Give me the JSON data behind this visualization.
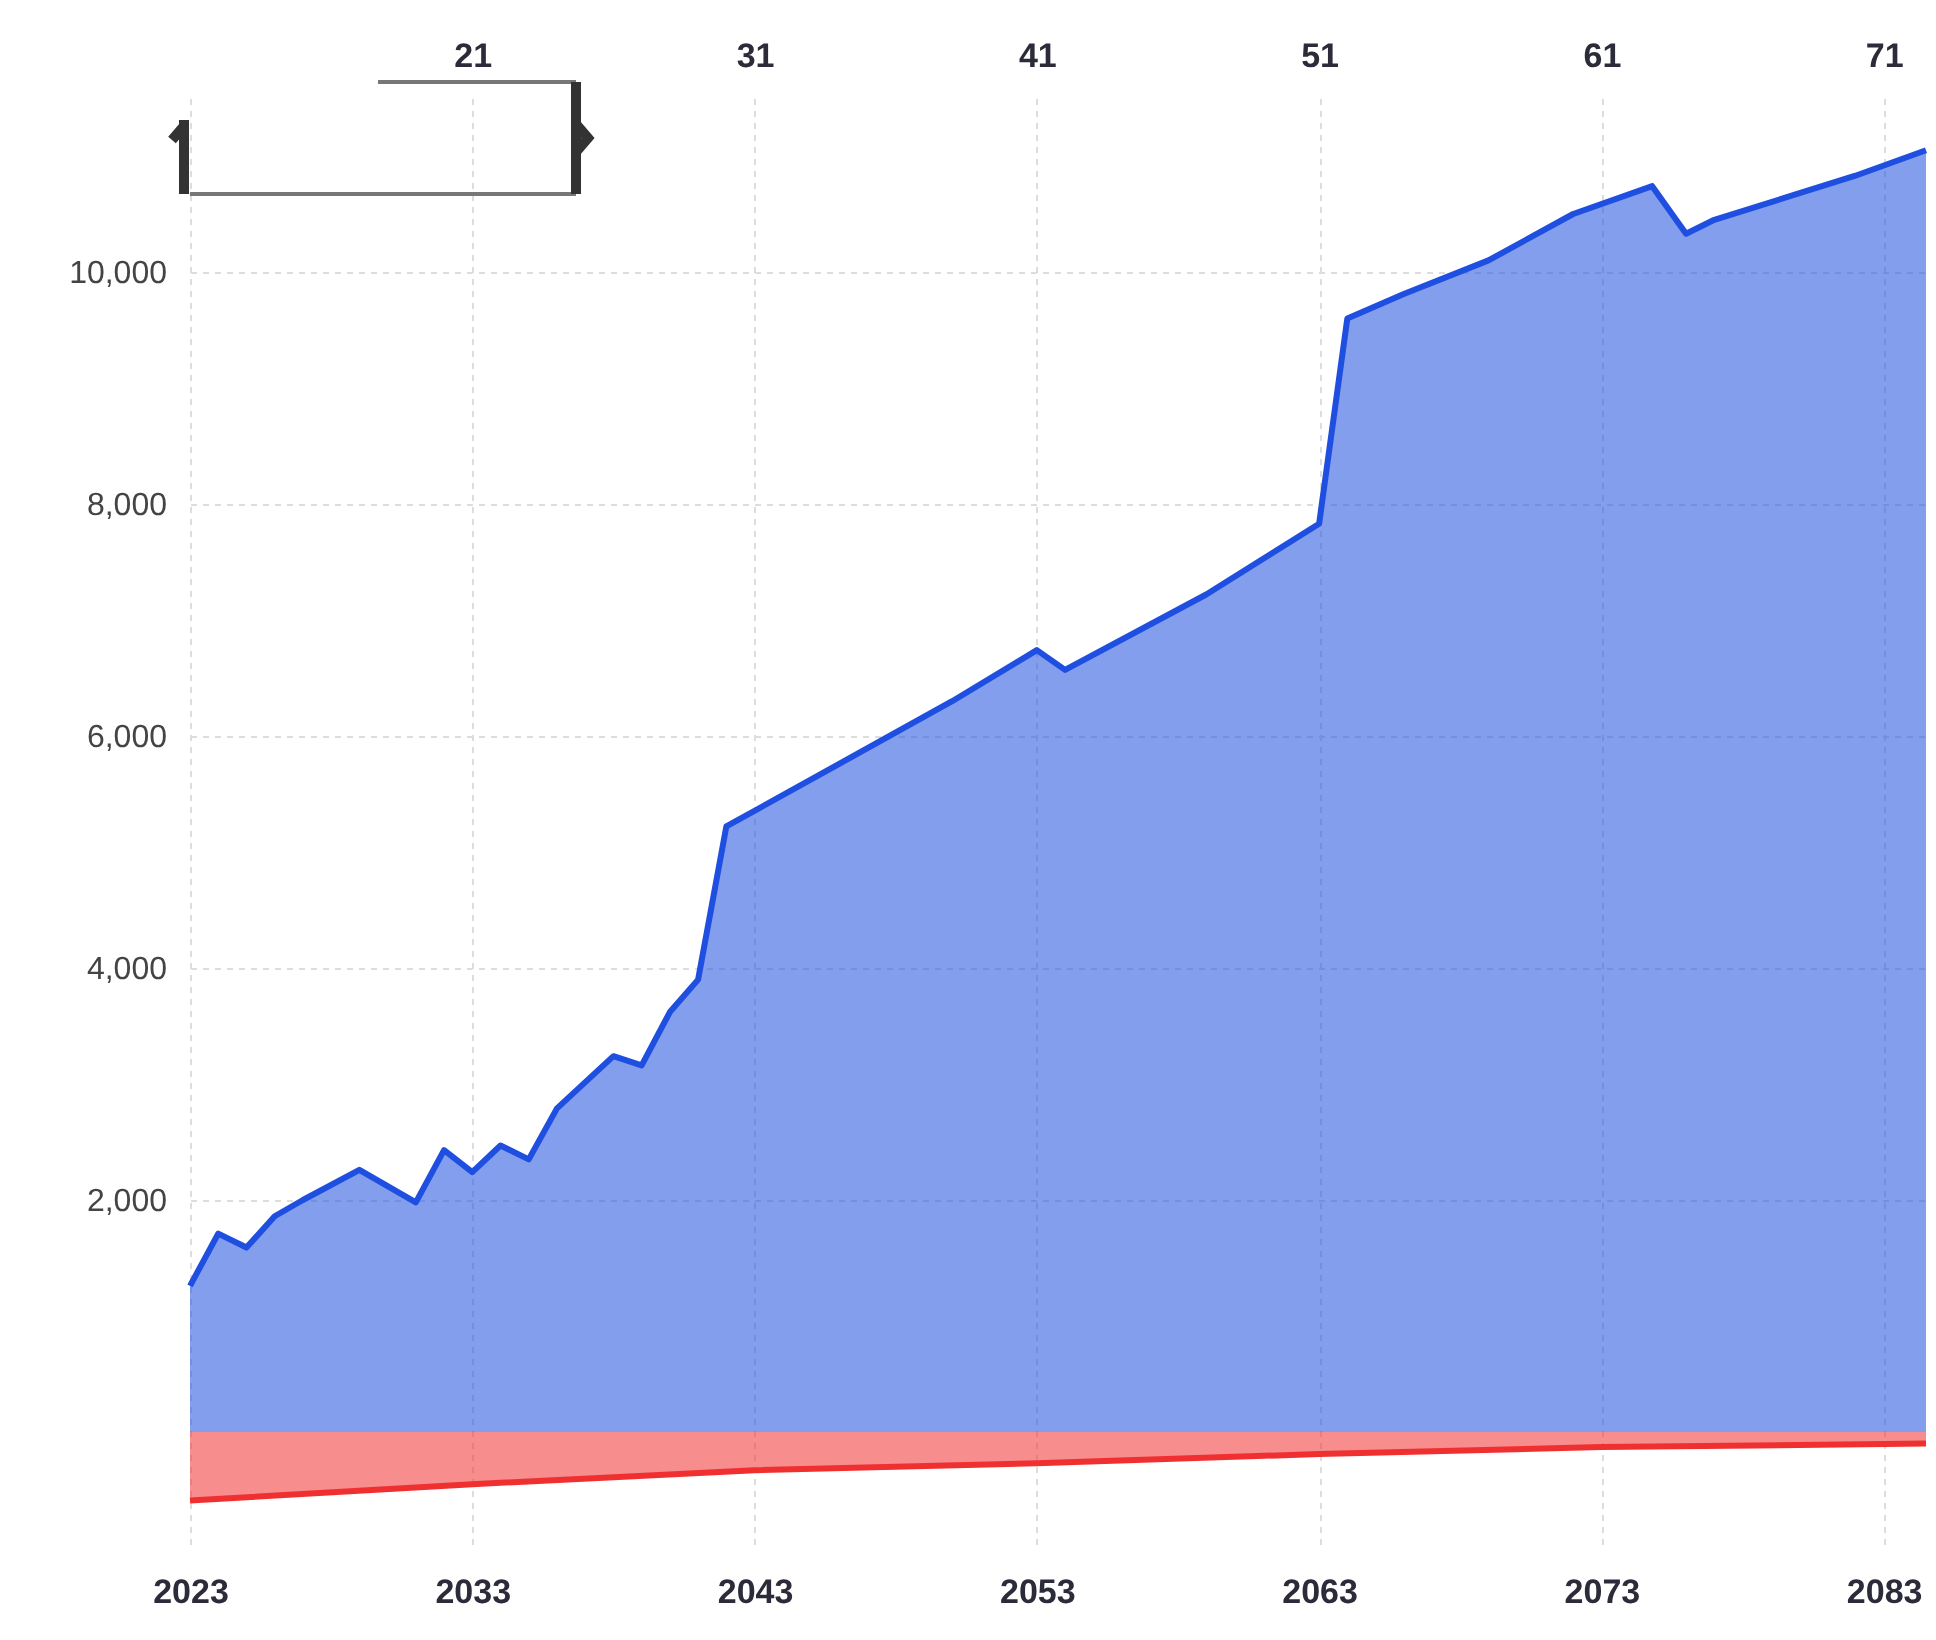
{
  "chart_data": {
    "type": "area",
    "x": [
      2023,
      2024,
      2025,
      2026,
      2027,
      2029,
      2031,
      2032,
      2033,
      2034,
      2035,
      2036,
      2038,
      2039,
      2040,
      2041,
      2042,
      2050,
      2053,
      2054,
      2059,
      2063,
      2064,
      2066,
      2069,
      2072,
      2074.8,
      2076,
      2077,
      2082,
      2084.5
    ],
    "series": [
      {
        "color": "#1f4fe0",
        "values": [
          1260,
          1710,
          1590,
          1860,
          2000,
          2260,
          1980,
          2430,
          2240,
          2470,
          2350,
          2790,
          3240,
          3160,
          3620,
          3900,
          5220,
          6300,
          6740,
          6570,
          7220,
          7830,
          9600,
          9810,
          10100,
          10500,
          10740,
          10330,
          10450,
          10830,
          11050
        ]
      },
      {
        "color": "#f03030",
        "x": [
          2023,
          2033,
          2043,
          2053,
          2063,
          2073,
          2084.5
        ],
        "values": [
          -590,
          -450,
          -330,
          -270,
          -190,
          -130,
          -100
        ]
      }
    ],
    "xlim": [
      2023,
      2084.5
    ],
    "xticks": [
      2023,
      2033,
      2043,
      2053,
      2063,
      2073,
      2083
    ],
    "x2lim": [
      11,
      72.5
    ],
    "x2ticks": [
      21,
      31,
      41,
      51,
      61,
      71
    ],
    "ylim": [
      -1000,
      11500
    ],
    "yticks": [
      {
        "value": 2000,
        "label": "2,000"
      },
      {
        "value": 4000,
        "label": "4,000"
      },
      {
        "value": 6000,
        "label": "6,000"
      },
      {
        "value": 8000,
        "label": "8,000"
      },
      {
        "value": 10000,
        "label": "10,000"
      }
    ],
    "grid": true
  }
}
